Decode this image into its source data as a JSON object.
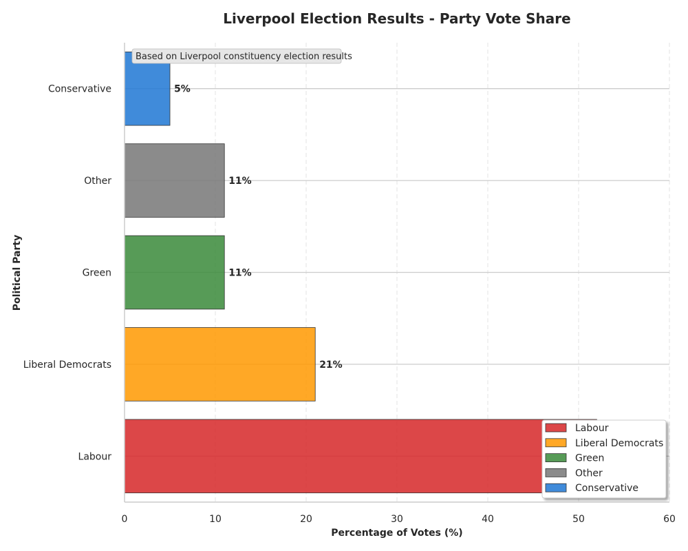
{
  "chart_data": {
    "type": "bar",
    "orientation": "horizontal",
    "title": "Liverpool Election Results - Party Vote Share",
    "xlabel": "Percentage of Votes (%)",
    "ylabel": "Political Party",
    "xlim": [
      0,
      60
    ],
    "xticks": [
      0,
      10,
      20,
      30,
      40,
      50,
      60
    ],
    "categories": [
      "Labour",
      "Liberal Democrats",
      "Green",
      "Other",
      "Conservative"
    ],
    "values": [
      52,
      21,
      11,
      11,
      5
    ],
    "value_labels": [
      "",
      "21%",
      "11%",
      "11%",
      "5%"
    ],
    "colors": [
      "#d62728",
      "#ff9900",
      "#3a8a3a",
      "#777777",
      "#1f77d4"
    ],
    "annotation": "Based on Liverpool constituency election results",
    "legend": {
      "placement": "bottom-right",
      "entries": [
        "Labour",
        "Liberal Democrats",
        "Green",
        "Other",
        "Conservative"
      ]
    },
    "grid": {
      "x": "dashed",
      "y": "solid"
    }
  }
}
